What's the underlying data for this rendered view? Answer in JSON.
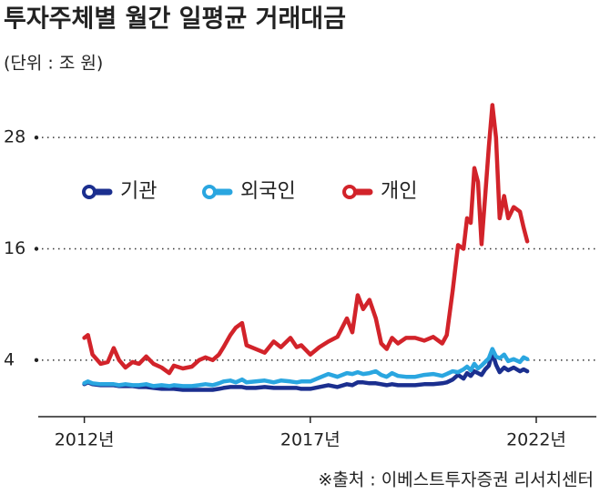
{
  "chart_data": {
    "type": "line",
    "title": "투자주체별 월간 일평균 거래대금",
    "subtitle": "(단위 : 조 원)",
    "source": "※출처 : 이베스트투자증권 리서치센터",
    "x": [
      2012.0,
      2012.08,
      2012.18,
      2012.36,
      2012.52,
      2012.65,
      2012.77,
      2012.91,
      2013.07,
      2013.21,
      2013.37,
      2013.53,
      2013.71,
      2013.88,
      2013.98,
      2014.18,
      2014.38,
      2014.54,
      2014.68,
      2014.84,
      2014.98,
      2015.08,
      2015.23,
      2015.35,
      2015.49,
      2015.59,
      2015.79,
      2015.99,
      2016.19,
      2016.35,
      2016.56,
      2016.7,
      2016.8,
      2017.0,
      2017.2,
      2017.4,
      2017.6,
      2017.81,
      2017.93,
      2018.05,
      2018.17,
      2018.31,
      2018.45,
      2018.57,
      2018.69,
      2018.81,
      2018.94,
      2019.12,
      2019.32,
      2019.52,
      2019.72,
      2019.92,
      2020.02,
      2020.15,
      2020.27,
      2020.39,
      2020.47,
      2020.55,
      2020.63,
      2020.71,
      2020.79,
      2020.87,
      2020.95,
      2021.03,
      2021.11,
      2021.19,
      2021.29,
      2021.38,
      2021.5,
      2021.64,
      2021.72,
      2021.8
    ],
    "series": [
      {
        "name": "기관",
        "color": "#1b2f8f",
        "values": [
          1.4,
          1.6,
          1.4,
          1.3,
          1.3,
          1.3,
          1.2,
          1.2,
          1.2,
          1.1,
          1.1,
          1.0,
          0.9,
          0.9,
          0.9,
          0.8,
          0.8,
          0.8,
          0.8,
          0.8,
          0.9,
          1.0,
          1.1,
          1.1,
          1.1,
          1.0,
          1.0,
          1.1,
          1.0,
          1.0,
          1.0,
          1.0,
          0.9,
          0.9,
          1.1,
          1.3,
          1.1,
          1.4,
          1.3,
          1.6,
          1.6,
          1.5,
          1.5,
          1.4,
          1.3,
          1.4,
          1.3,
          1.3,
          1.3,
          1.4,
          1.4,
          1.5,
          1.6,
          1.9,
          2.4,
          2.0,
          2.6,
          2.3,
          2.8,
          2.6,
          2.4,
          3.0,
          3.4,
          4.8,
          3.5,
          2.7,
          3.2,
          2.9,
          3.2,
          2.8,
          3.0,
          2.8
        ]
      },
      {
        "name": "외국인",
        "color": "#2aa6e0",
        "values": [
          1.5,
          1.7,
          1.5,
          1.4,
          1.4,
          1.4,
          1.3,
          1.4,
          1.3,
          1.3,
          1.4,
          1.2,
          1.3,
          1.2,
          1.3,
          1.2,
          1.2,
          1.3,
          1.4,
          1.3,
          1.5,
          1.7,
          1.8,
          1.6,
          1.9,
          1.6,
          1.7,
          1.8,
          1.6,
          1.8,
          1.7,
          1.6,
          1.7,
          1.7,
          2.1,
          2.5,
          2.2,
          2.6,
          2.5,
          2.7,
          2.5,
          2.6,
          2.8,
          2.4,
          2.2,
          2.6,
          2.3,
          2.2,
          2.2,
          2.4,
          2.5,
          2.3,
          2.5,
          2.8,
          2.7,
          3.0,
          3.3,
          2.9,
          3.6,
          3.1,
          3.4,
          3.8,
          4.2,
          5.2,
          4.4,
          4.2,
          4.6,
          3.9,
          4.1,
          3.8,
          4.3,
          4.1
        ]
      },
      {
        "name": "개인",
        "color": "#d2232a",
        "values": [
          6.4,
          6.7,
          4.6,
          3.6,
          3.8,
          5.3,
          4,
          3.2,
          3.8,
          3.6,
          4.4,
          3.6,
          3.2,
          2.6,
          3.4,
          3.1,
          3.3,
          4,
          4.3,
          4,
          4.6,
          5.4,
          6.7,
          7.5,
          8,
          5.6,
          5.2,
          4.8,
          6,
          5.4,
          6.4,
          5.4,
          5.6,
          4.6,
          5.4,
          6,
          6.5,
          8.5,
          7,
          11,
          9.5,
          10.5,
          8.5,
          5.8,
          5.2,
          6.4,
          5.8,
          6.4,
          6.4,
          6.1,
          6.5,
          5.8,
          6.7,
          11.5,
          16.4,
          16,
          19.3,
          18.8,
          24.7,
          23.2,
          16.5,
          21.7,
          27,
          31.5,
          28,
          19.3,
          21.7,
          19.3,
          20.5,
          20,
          18.3,
          16.8
        ]
      }
    ],
    "xlim": [
      2010.98,
      2023.33
    ],
    "xticks": [
      {
        "value": 2012,
        "label": "2012년"
      },
      {
        "value": 2017,
        "label": "2017년"
      },
      {
        "value": 2022,
        "label": "2022년"
      }
    ],
    "ylim": [
      -2,
      34
    ],
    "yticks": [
      4,
      16,
      28
    ],
    "grid": true,
    "legend": "top-left"
  }
}
